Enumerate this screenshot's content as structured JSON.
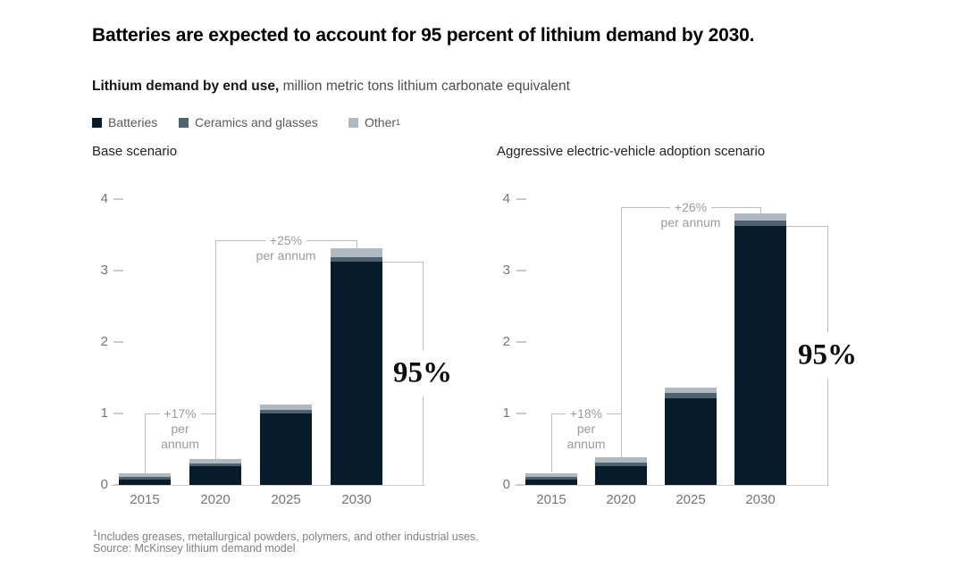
{
  "title": "Batteries are expected to account for 95 percent of lithium demand by 2030.",
  "subtitle": {
    "bold": "Lithium demand by end use,",
    "rest": " million metric tons lithium carbonate equivalent"
  },
  "legend": {
    "items": [
      {
        "label": "Batteries",
        "sup": "",
        "color": "#071c2b"
      },
      {
        "label": "Ceramics and glasses",
        "sup": "",
        "color": "#50626d"
      },
      {
        "label": "Other",
        "sup": "1",
        "color": "#aeb9c1"
      }
    ]
  },
  "footnote": {
    "sup": "1",
    "text": "Includes greases, metallurgical powders, polymers, and other industrial uses."
  },
  "source": "Source: McKinsey lithium demand model",
  "chart_data": [
    {
      "type": "bar",
      "stacked": true,
      "title": "Base scenario",
      "categories": [
        "2015",
        "2020",
        "2025",
        "2030"
      ],
      "series": [
        {
          "name": "Batteries",
          "color": "#071c2b",
          "values": [
            0.07,
            0.26,
            1.0,
            3.13
          ]
        },
        {
          "name": "Ceramics and glasses",
          "color": "#50626d",
          "values": [
            0.04,
            0.04,
            0.05,
            0.06
          ]
        },
        {
          "name": "Other",
          "color": "#aeb9c1",
          "values": [
            0.05,
            0.06,
            0.08,
            0.12
          ]
        }
      ],
      "ylim": [
        0,
        4
      ],
      "yticks": [
        0,
        1,
        2,
        3,
        4
      ],
      "grid": false,
      "annotations": [
        {
          "type": "growth",
          "lines": [
            "+17%",
            "per",
            "annum"
          ],
          "from": "2015",
          "to": "2020"
        },
        {
          "type": "growth",
          "lines": [
            "+25%",
            "per annum"
          ],
          "from": "2020",
          "to": "2030"
        },
        {
          "type": "callout",
          "label": "95%",
          "at": "2030",
          "refers_to": "Batteries share of 2030 demand"
        }
      ]
    },
    {
      "type": "bar",
      "stacked": true,
      "title": "Aggressive electric-vehicle adoption scenario",
      "categories": [
        "2015",
        "2020",
        "2025",
        "2030"
      ],
      "series": [
        {
          "name": "Batteries",
          "color": "#071c2b",
          "values": [
            0.08,
            0.26,
            1.21,
            3.62
          ]
        },
        {
          "name": "Ceramics and glasses",
          "color": "#50626d",
          "values": [
            0.04,
            0.05,
            0.07,
            0.08
          ]
        },
        {
          "name": "Other",
          "color": "#aeb9c1",
          "values": [
            0.05,
            0.07,
            0.08,
            0.1
          ]
        }
      ],
      "ylim": [
        0,
        4
      ],
      "yticks": [
        0,
        1,
        2,
        3,
        4
      ],
      "grid": false,
      "annotations": [
        {
          "type": "growth",
          "lines": [
            "+18%",
            "per",
            "annum"
          ],
          "from": "2015",
          "to": "2020"
        },
        {
          "type": "growth",
          "lines": [
            "+26%",
            "per annum"
          ],
          "from": "2020",
          "to": "2030"
        },
        {
          "type": "callout",
          "label": "95%",
          "at": "2030",
          "refers_to": "Batteries share of 2030 demand"
        }
      ]
    }
  ]
}
